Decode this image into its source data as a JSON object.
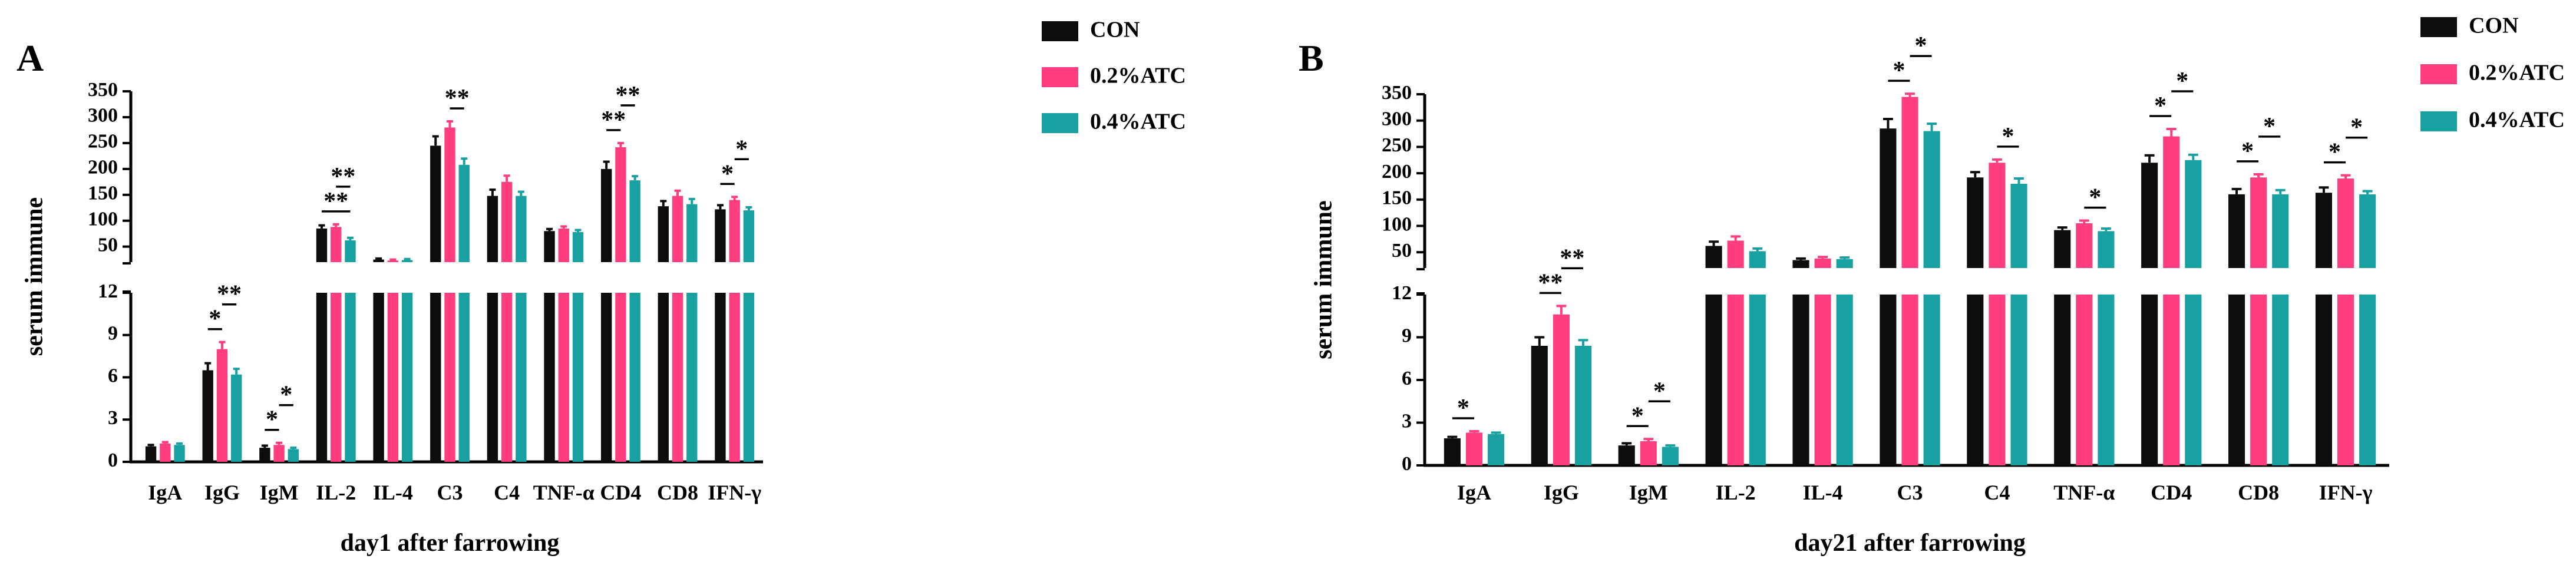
{
  "legend": {
    "entries": [
      "CON",
      "0.2%ATC",
      "0.4%ATC"
    ],
    "colors": [
      "#0d0d0d",
      "#ff3d7f",
      "#19a1a1"
    ]
  },
  "chart_data": [
    {
      "type": "bar",
      "panel_label": "A",
      "xlabel": "day1 after farrowing",
      "ylabel": "serum immune",
      "y_break": {
        "lower_range": [
          0,
          12
        ],
        "upper_range": [
          20,
          350
        ]
      },
      "lower_ticks": [
        "0",
        "3",
        "6",
        "9",
        "12"
      ],
      "upper_ticks": [
        "50",
        "100",
        "150",
        "200",
        "250",
        "300",
        "350"
      ],
      "categories": [
        "IgA",
        "IgG",
        "IgM",
        "IL-2",
        "IL-4",
        "C3",
        "C4",
        "TNF-α",
        "CD4",
        "CD8",
        "IFN-γ"
      ],
      "series": [
        {
          "name": "CON",
          "values": [
            1.1,
            6.5,
            1.0,
            85,
            25,
            245,
            148,
            80,
            200,
            128,
            122
          ]
        },
        {
          "name": "0.2%ATC",
          "values": [
            1.3,
            8.0,
            1.2,
            88,
            23,
            280,
            175,
            85,
            242,
            148,
            140
          ]
        },
        {
          "name": "0.4%ATC",
          "values": [
            1.2,
            6.2,
            0.9,
            62,
            24,
            208,
            148,
            78,
            178,
            132,
            120
          ]
        }
      ],
      "errors": [
        [
          0.1,
          0.5,
          0.15,
          6,
          2,
          18,
          12,
          4,
          14,
          10,
          8
        ],
        [
          0.1,
          0.5,
          0.15,
          5,
          2,
          12,
          12,
          4,
          8,
          10,
          6
        ],
        [
          0.1,
          0.4,
          0.1,
          5,
          2,
          12,
          8,
          4,
          8,
          10,
          6
        ]
      ],
      "annotations": [
        {
          "category": "IgG",
          "pair": "1-2",
          "label": "*"
        },
        {
          "category": "IgG",
          "pair": "2-3",
          "label": "**"
        },
        {
          "category": "IgM",
          "pair": "1-2",
          "label": "*"
        },
        {
          "category": "IgM",
          "pair": "2-3",
          "label": "*"
        },
        {
          "category": "IL-2",
          "pair": "1-3",
          "label": "**"
        },
        {
          "category": "IL-2",
          "pair": "2-3",
          "label": "**"
        },
        {
          "category": "C3",
          "pair": "2-3",
          "label": "**"
        },
        {
          "category": "CD4",
          "pair": "1-2",
          "label": "**"
        },
        {
          "category": "CD4",
          "pair": "2-3",
          "label": "**"
        },
        {
          "category": "IFN-γ",
          "pair": "1-2",
          "label": "*"
        },
        {
          "category": "IFN-γ",
          "pair": "2-3",
          "label": "*"
        }
      ]
    },
    {
      "type": "bar",
      "panel_label": "B",
      "xlabel": "day21 after farrowing",
      "ylabel": "serum immune",
      "y_break": {
        "lower_range": [
          0,
          12
        ],
        "upper_range": [
          20,
          350
        ]
      },
      "lower_ticks": [
        "0",
        "3",
        "6",
        "9",
        "12"
      ],
      "upper_ticks": [
        "50",
        "100",
        "150",
        "200",
        "250",
        "300",
        "350"
      ],
      "categories": [
        "IgA",
        "IgG",
        "IgM",
        "IL-2",
        "IL-4",
        "C3",
        "C4",
        "TNF-α",
        "CD4",
        "CD8",
        "IFN-γ"
      ],
      "series": [
        {
          "name": "CON",
          "values": [
            1.9,
            8.4,
            1.4,
            62,
            35,
            285,
            192,
            92,
            220,
            160,
            163
          ]
        },
        {
          "name": "0.2%ATC",
          "values": [
            2.3,
            10.6,
            1.7,
            72,
            38,
            345,
            220,
            105,
            270,
            192,
            190
          ]
        },
        {
          "name": "0.4%ATC",
          "values": [
            2.2,
            8.4,
            1.3,
            52,
            37,
            280,
            180,
            90,
            225,
            160,
            160
          ]
        }
      ],
      "errors": [
        [
          0.1,
          0.6,
          0.15,
          8,
          3,
          18,
          10,
          5,
          14,
          10,
          10
        ],
        [
          0.1,
          0.6,
          0.15,
          8,
          3,
          6,
          6,
          5,
          14,
          6,
          6
        ],
        [
          0.1,
          0.4,
          0.1,
          5,
          3,
          14,
          10,
          5,
          10,
          8,
          6
        ]
      ],
      "annotations": [
        {
          "category": "IgA",
          "pair": "1-2",
          "label": "*"
        },
        {
          "category": "IgG",
          "pair": "1-2",
          "label": "**"
        },
        {
          "category": "IgG",
          "pair": "2-3",
          "label": "**"
        },
        {
          "category": "IgM",
          "pair": "1-2",
          "label": "*"
        },
        {
          "category": "IgM",
          "pair": "2-3",
          "label": "*"
        },
        {
          "category": "C3",
          "pair": "1-2",
          "label": "*"
        },
        {
          "category": "C3",
          "pair": "2-3",
          "label": "*"
        },
        {
          "category": "C4",
          "pair": "2-3",
          "label": "*"
        },
        {
          "category": "TNF-α",
          "pair": "2-3",
          "label": "*"
        },
        {
          "category": "CD4",
          "pair": "1-2",
          "label": "*"
        },
        {
          "category": "CD4",
          "pair": "2-3",
          "label": "*"
        },
        {
          "category": "CD8",
          "pair": "1-2",
          "label": "*"
        },
        {
          "category": "CD8",
          "pair": "2-3",
          "label": "*"
        },
        {
          "category": "IFN-γ",
          "pair": "1-2",
          "label": "*"
        },
        {
          "category": "IFN-γ",
          "pair": "2-3",
          "label": "*"
        }
      ]
    }
  ]
}
